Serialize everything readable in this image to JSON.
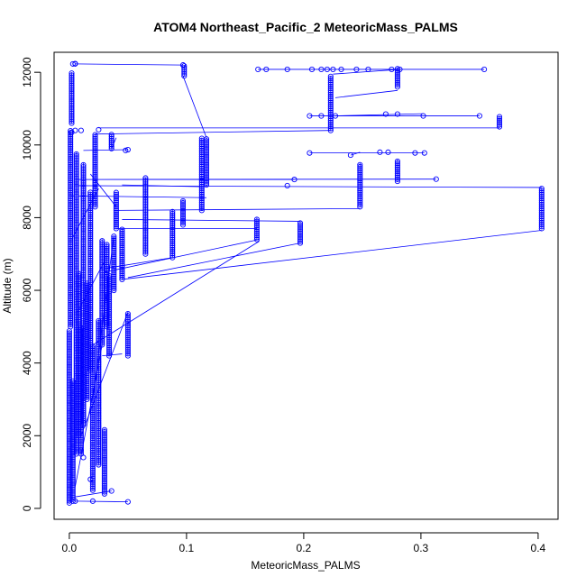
{
  "chart_data": {
    "type": "scatter",
    "title": "ATOM4 Northeast_Pacific_2 MeteoricMass_PALMS",
    "xlabel": "MeteoricMass_PALMS",
    "ylabel": "Altitude (m)",
    "xlim": [
      -0.013,
      0.417
    ],
    "ylim": [
      -300,
      12550
    ],
    "x_ticks": [
      0.0,
      0.1,
      0.2,
      0.3,
      0.4
    ],
    "x_tick_labels": [
      "0.0",
      "0.1",
      "0.2",
      "0.3",
      "0.4"
    ],
    "y_ticks": [
      0,
      2000,
      4000,
      6000,
      8000,
      10000,
      12000
    ],
    "y_tick_labels": [
      "0",
      "2000",
      "4000",
      "6000",
      "8000",
      "10000",
      "12000"
    ],
    "grid": false,
    "legend": "none",
    "series_color": "#0000ff",
    "marker": "open-circle",
    "connected": true,
    "segments": [
      {
        "x": 0.0,
        "y_from": 150,
        "y_to": 4900
      },
      {
        "x": 0.001,
        "y_from": 5000,
        "y_to": 10400
      },
      {
        "x": 0.002,
        "y_from": 10600,
        "y_to": 12000
      },
      {
        "x": 0.005,
        "y_from": 12230,
        "y_to": 12230
      },
      {
        "x": 0.003,
        "y_from": 200,
        "y_to": 3500
      },
      {
        "x": 0.006,
        "y_from": 1500,
        "y_to": 9800
      },
      {
        "x": 0.008,
        "y_from": 2000,
        "y_to": 6500
      },
      {
        "x": 0.01,
        "y_from": 1500,
        "y_to": 5000
      },
      {
        "x": 0.012,
        "y_from": 2300,
        "y_to": 9500
      },
      {
        "x": 0.015,
        "y_from": 3000,
        "y_to": 6200
      },
      {
        "x": 0.018,
        "y_from": 3800,
        "y_to": 8700
      },
      {
        "x": 0.02,
        "y_from": 500,
        "y_to": 4500
      },
      {
        "x": 0.022,
        "y_from": 8300,
        "y_to": 10300
      },
      {
        "x": 0.025,
        "y_from": 1200,
        "y_to": 5200
      },
      {
        "x": 0.028,
        "y_from": 4500,
        "y_to": 7400
      },
      {
        "x": 0.03,
        "y_from": 400,
        "y_to": 2200
      },
      {
        "x": 0.032,
        "y_from": 5000,
        "y_to": 7300
      },
      {
        "x": 0.034,
        "y_from": 4200,
        "y_to": 6400
      },
      {
        "x": 0.036,
        "y_from": 9900,
        "y_to": 10300
      },
      {
        "x": 0.038,
        "y_from": 6000,
        "y_to": 7500
      },
      {
        "x": 0.04,
        "y_from": 7700,
        "y_to": 8700
      },
      {
        "x": 0.045,
        "y_from": 6300,
        "y_to": 7700
      },
      {
        "x": 0.05,
        "y_from": 4200,
        "y_to": 5400
      },
      {
        "x": 0.065,
        "y_from": 7000,
        "y_to": 9100
      },
      {
        "x": 0.088,
        "y_from": 6900,
        "y_to": 8200
      },
      {
        "x": 0.097,
        "y_from": 7800,
        "y_to": 8500
      },
      {
        "x": 0.098,
        "y_from": 11900,
        "y_to": 12200
      },
      {
        "x": 0.113,
        "y_from": 8200,
        "y_to": 10200
      },
      {
        "x": 0.117,
        "y_from": 8900,
        "y_to": 10200
      },
      {
        "x": 0.16,
        "y_from": 7400,
        "y_to": 8000
      },
      {
        "x": 0.197,
        "y_from": 7300,
        "y_to": 7900
      },
      {
        "x": 0.223,
        "y_from": 10400,
        "y_to": 11900
      },
      {
        "x": 0.248,
        "y_from": 8300,
        "y_to": 9500
      },
      {
        "x": 0.28,
        "y_from": 9000,
        "y_to": 9600
      },
      {
        "x": 0.28,
        "y_from": 11600,
        "y_to": 12100
      },
      {
        "x": 0.367,
        "y_from": 10500,
        "y_to": 10800
      },
      {
        "x": 0.403,
        "y_from": 7700,
        "y_to": 8800
      }
    ],
    "points": [
      {
        "x": 0.003,
        "y": 12230
      },
      {
        "x": 0.005,
        "y": 12240
      },
      {
        "x": 0.097,
        "y": 12200
      },
      {
        "x": 0.161,
        "y": 12080
      },
      {
        "x": 0.168,
        "y": 12080
      },
      {
        "x": 0.186,
        "y": 12080
      },
      {
        "x": 0.207,
        "y": 12080
      },
      {
        "x": 0.215,
        "y": 12080
      },
      {
        "x": 0.22,
        "y": 12080
      },
      {
        "x": 0.225,
        "y": 12080
      },
      {
        "x": 0.232,
        "y": 12080
      },
      {
        "x": 0.245,
        "y": 12080
      },
      {
        "x": 0.255,
        "y": 12080
      },
      {
        "x": 0.275,
        "y": 12080
      },
      {
        "x": 0.282,
        "y": 12080
      },
      {
        "x": 0.354,
        "y": 12080
      },
      {
        "x": 0.205,
        "y": 10800
      },
      {
        "x": 0.215,
        "y": 10800
      },
      {
        "x": 0.227,
        "y": 10800
      },
      {
        "x": 0.27,
        "y": 10850
      },
      {
        "x": 0.28,
        "y": 10850
      },
      {
        "x": 0.302,
        "y": 10800
      },
      {
        "x": 0.35,
        "y": 10800
      },
      {
        "x": 0.205,
        "y": 9780
      },
      {
        "x": 0.265,
        "y": 9800
      },
      {
        "x": 0.272,
        "y": 9800
      },
      {
        "x": 0.295,
        "y": 9780
      },
      {
        "x": 0.303,
        "y": 9780
      },
      {
        "x": 0.24,
        "y": 9720
      },
      {
        "x": 0.192,
        "y": 9050
      },
      {
        "x": 0.186,
        "y": 8880
      },
      {
        "x": 0.313,
        "y": 9060
      },
      {
        "x": 0.05,
        "y": 9870
      },
      {
        "x": 0.048,
        "y": 9850
      },
      {
        "x": 0.01,
        "y": 10400
      },
      {
        "x": 0.005,
        "y": 10400
      },
      {
        "x": 0.025,
        "y": 10420
      },
      {
        "x": 0.002,
        "y": 10350
      },
      {
        "x": 0.05,
        "y": 180
      },
      {
        "x": 0.036,
        "y": 480
      },
      {
        "x": 0.02,
        "y": 200
      },
      {
        "x": 0.005,
        "y": 200
      },
      {
        "x": 0.01,
        "y": 1600
      },
      {
        "x": 0.012,
        "y": 1400
      },
      {
        "x": 0.018,
        "y": 800
      }
    ],
    "connections": [
      {
        "x1": 0.005,
        "y1": 12230,
        "x2": 0.097,
        "y2": 12200
      },
      {
        "x1": 0.097,
        "y1": 11900,
        "x2": 0.117,
        "y2": 10200
      },
      {
        "x1": 0.161,
        "y1": 12080,
        "x2": 0.354,
        "y2": 12080
      },
      {
        "x1": 0.225,
        "y1": 11950,
        "x2": 0.282,
        "y2": 12080
      },
      {
        "x1": 0.227,
        "y1": 11300,
        "x2": 0.28,
        "y2": 11500
      },
      {
        "x1": 0.205,
        "y1": 10800,
        "x2": 0.35,
        "y2": 10800
      },
      {
        "x1": 0.227,
        "y1": 10800,
        "x2": 0.302,
        "y2": 10860
      },
      {
        "x1": 0.025,
        "y1": 10470,
        "x2": 0.367,
        "y2": 10470
      },
      {
        "x1": 0.022,
        "y1": 10300,
        "x2": 0.223,
        "y2": 10400
      },
      {
        "x1": 0.205,
        "y1": 9780,
        "x2": 0.303,
        "y2": 9780
      },
      {
        "x1": 0.24,
        "y1": 9720,
        "x2": 0.248,
        "y2": 9800
      },
      {
        "x1": 0.005,
        "y1": 9050,
        "x2": 0.313,
        "y2": 9060
      },
      {
        "x1": 0.004,
        "y1": 8880,
        "x2": 0.403,
        "y2": 8830
      },
      {
        "x1": 0.065,
        "y1": 9050,
        "x2": 0.192,
        "y2": 9050
      },
      {
        "x1": 0.045,
        "y1": 8900,
        "x2": 0.113,
        "y2": 8850
      },
      {
        "x1": 0.04,
        "y1": 8200,
        "x2": 0.248,
        "y2": 8250
      },
      {
        "x1": 0.002,
        "y1": 8600,
        "x2": 0.117,
        "y2": 8550
      },
      {
        "x1": 0.045,
        "y1": 7950,
        "x2": 0.197,
        "y2": 7900
      },
      {
        "x1": 0.04,
        "y1": 7700,
        "x2": 0.16,
        "y2": 7700
      },
      {
        "x1": 0.05,
        "y1": 6350,
        "x2": 0.197,
        "y2": 7300
      },
      {
        "x1": 0.045,
        "y1": 6300,
        "x2": 0.403,
        "y2": 7650
      },
      {
        "x1": 0.03,
        "y1": 6600,
        "x2": 0.088,
        "y2": 6900
      },
      {
        "x1": 0.03,
        "y1": 6500,
        "x2": 0.162,
        "y2": 7400
      },
      {
        "x1": 0.02,
        "y1": 4500,
        "x2": 0.162,
        "y2": 7350
      },
      {
        "x1": 0.036,
        "y1": 9900,
        "x2": 0.04,
        "y2": 10200
      },
      {
        "x1": 0.012,
        "y1": 9850,
        "x2": 0.05,
        "y2": 9870
      },
      {
        "x1": 0.028,
        "y1": 4200,
        "x2": 0.045,
        "y2": 4250
      },
      {
        "x1": 0.005,
        "y1": 200,
        "x2": 0.05,
        "y2": 180
      },
      {
        "x1": 0.002,
        "y1": 300,
        "x2": 0.036,
        "y2": 480
      },
      {
        "x1": 0.018,
        "y1": 9200,
        "x2": 0.04,
        "y2": 8300
      },
      {
        "x1": 0.007,
        "y1": 5400,
        "x2": 0.03,
        "y2": 6800
      },
      {
        "x1": 0.002,
        "y1": 7400,
        "x2": 0.025,
        "y2": 8800
      },
      {
        "x1": 0.02,
        "y1": 3000,
        "x2": 0.038,
        "y2": 7500
      },
      {
        "x1": 0.01,
        "y1": 2000,
        "x2": 0.05,
        "y2": 5400
      },
      {
        "x1": 0.005,
        "y1": 600,
        "x2": 0.028,
        "y2": 4500
      }
    ]
  }
}
